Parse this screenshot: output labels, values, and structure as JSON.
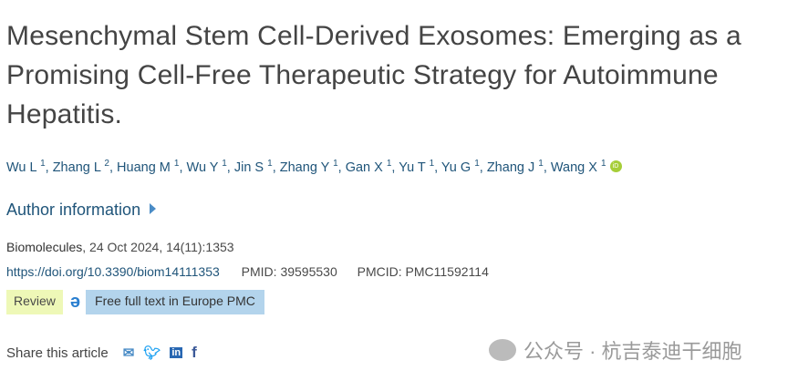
{
  "title": "Mesenchymal Stem Cell-Derived Exosomes: Emerging as a Promising Cell-Free Therapeutic Strategy for Autoimmune Hepatitis.",
  "authors": [
    {
      "name": "Wu L",
      "aff": "1"
    },
    {
      "name": "Zhang L",
      "aff": "2"
    },
    {
      "name": "Huang M",
      "aff": "1"
    },
    {
      "name": "Wu Y",
      "aff": "1"
    },
    {
      "name": "Jin S",
      "aff": "1"
    },
    {
      "name": "Zhang Y",
      "aff": "1"
    },
    {
      "name": "Gan X",
      "aff": "1"
    },
    {
      "name": "Yu T",
      "aff": "1"
    },
    {
      "name": "Yu G",
      "aff": "1"
    },
    {
      "name": "Zhang J",
      "aff": "1"
    },
    {
      "name": "Wang X",
      "aff": "1"
    }
  ],
  "orcid_label": "iD",
  "author_info": "Author information",
  "source": {
    "journal": "Biomolecules",
    "rest": ", 24 Oct 2024, 14(11):1353"
  },
  "ids": {
    "doi": "https://doi.org/10.3390/biom14111353",
    "pmid": "PMID: 39595530",
    "pmcid": "PMCID: PMC11592114"
  },
  "badges": {
    "review": "Review",
    "fulltext": "Free full text in Europe PMC"
  },
  "share": {
    "label": "Share this article"
  },
  "watermark": "公众号 · 杭吉泰迪干细胞"
}
